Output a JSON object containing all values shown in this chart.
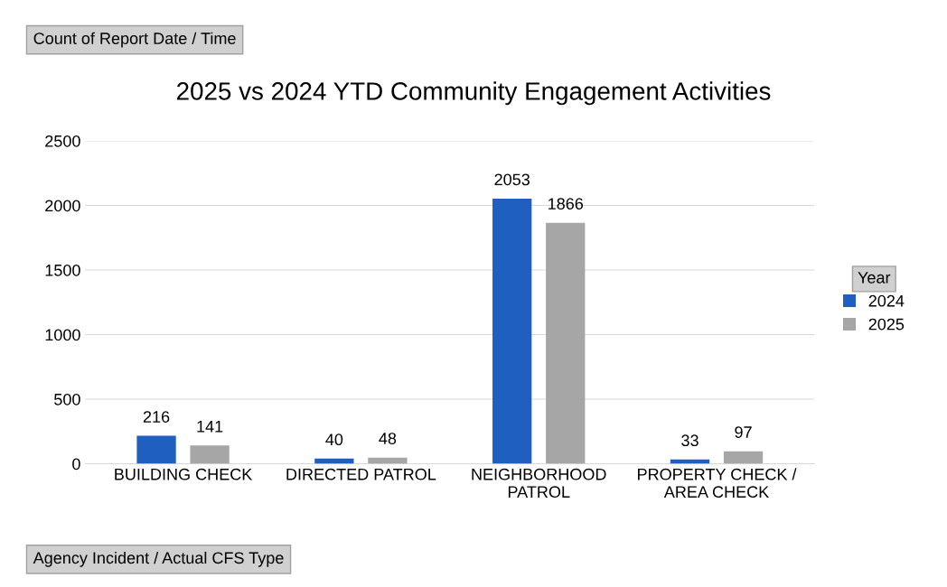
{
  "chart_data": {
    "type": "bar",
    "title": "2025 vs 2024 YTD Community Engagement Activities",
    "categories": [
      "BUILDING CHECK",
      "DIRECTED PATROL",
      "NEIGHBORHOOD\nPATROL",
      "PROPERTY CHECK /\nAREA CHECK"
    ],
    "series": [
      {
        "name": "2024",
        "color": "#1f5fbf",
        "values": [
          216,
          40,
          2053,
          33
        ]
      },
      {
        "name": "2025",
        "color": "#a6a6a6",
        "values": [
          141,
          48,
          1866,
          97
        ]
      }
    ],
    "ylim": [
      0,
      2500
    ],
    "yticks": [
      0,
      500,
      1000,
      1500,
      2000,
      2500
    ],
    "grid": "y",
    "legend": "right",
    "legend_title": "Year",
    "data_labels": true,
    "annotations": [
      "Count of Report Date / Time",
      "Agency Incident / Actual CFS Type"
    ]
  }
}
